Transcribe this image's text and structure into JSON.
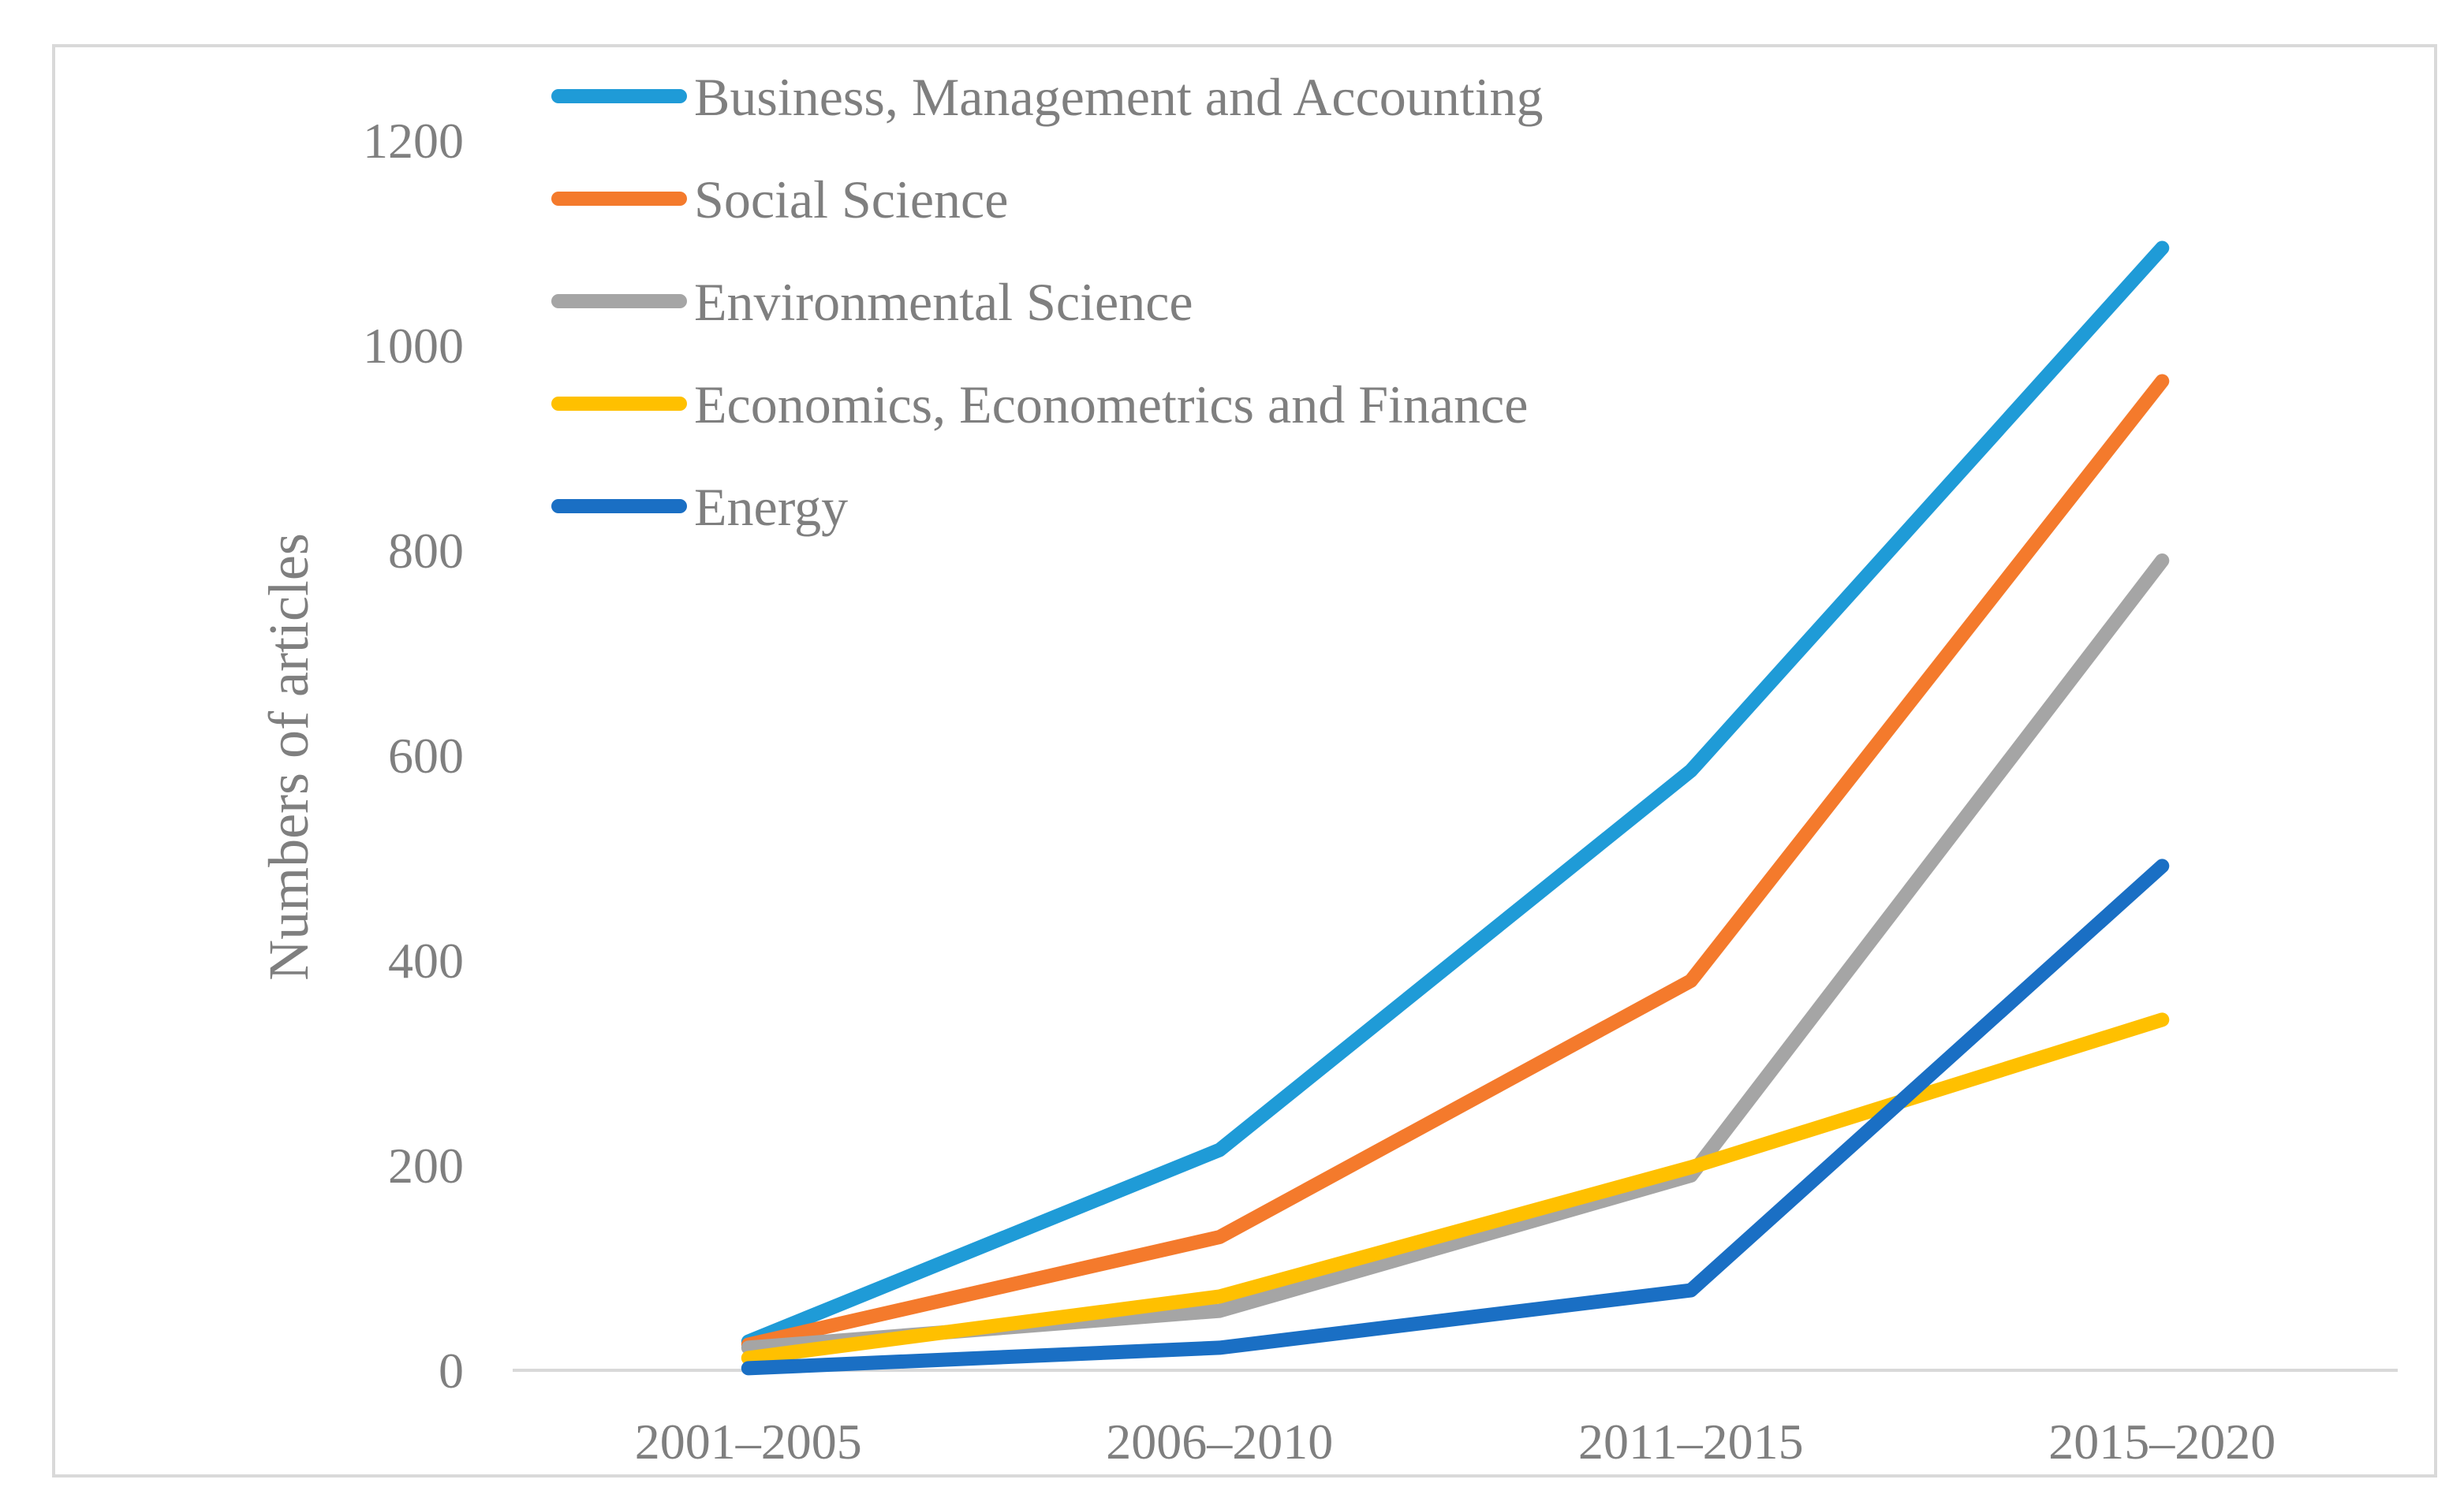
{
  "chart_data": {
    "type": "line",
    "title": "",
    "xlabel": "",
    "ylabel": "Numbers of articles",
    "categories": [
      "2001–2005",
      "2006–2010",
      "2011–2015",
      "2015–2020"
    ],
    "ylim": [
      0,
      1200
    ],
    "yticks": [
      "0",
      "200",
      "400",
      "600",
      "800",
      "1000",
      "1200"
    ],
    "grid": false,
    "legend_position": "top-left",
    "series": [
      {
        "name": "Business, Management and Accounting",
        "color": "#1f9bd7",
        "values": [
          28,
          215,
          585,
          1095
        ]
      },
      {
        "name": "Social Science",
        "color": "#f47a2c",
        "values": [
          25,
          130,
          380,
          965
        ]
      },
      {
        "name": "Environmental Science",
        "color": "#a5a5a5",
        "values": [
          22,
          58,
          190,
          790
        ]
      },
      {
        "name": "Economics, Econometrics and Finance",
        "color": "#ffc000",
        "values": [
          12,
          72,
          198,
          342
        ]
      },
      {
        "name": "Energy",
        "color": "#1a6fc4",
        "values": [
          2,
          22,
          78,
          492
        ]
      }
    ]
  }
}
